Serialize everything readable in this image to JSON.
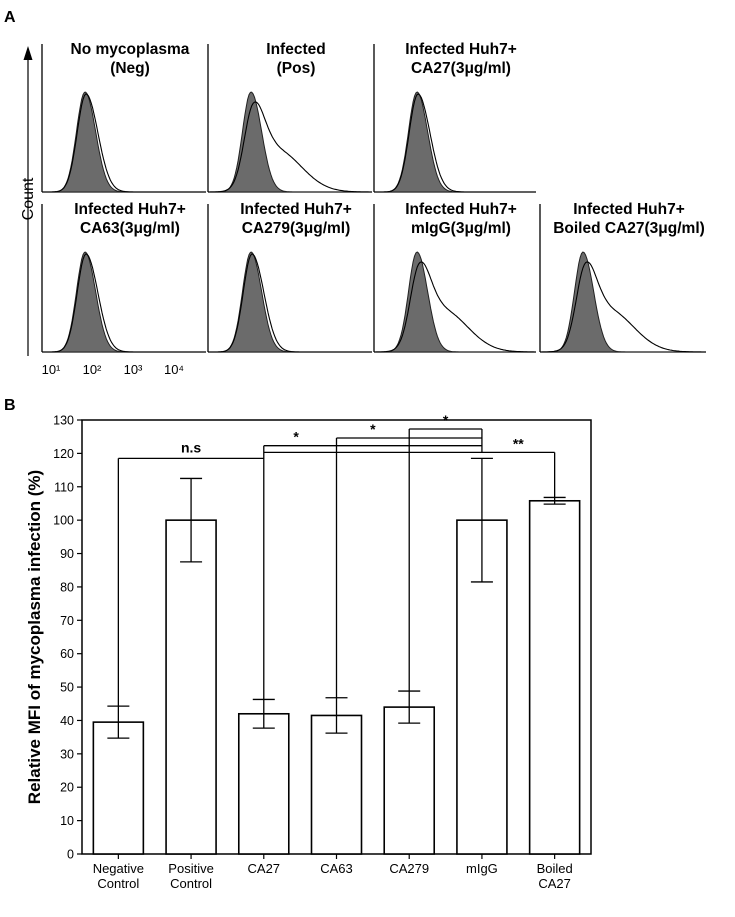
{
  "panel_a": {
    "label": "A",
    "count_label": "Count",
    "decade_labels": [
      "10¹",
      "10²",
      "10³",
      "10⁴"
    ],
    "histograms": [
      {
        "title": [
          "No mycoplasma",
          "(Neg)"
        ],
        "shift": "none"
      },
      {
        "title": [
          "Infected",
          "(Pos)"
        ],
        "shift": "strong"
      },
      {
        "title": [
          "Infected Huh7+",
          "CA27(3μg/ml)"
        ],
        "shift": "none"
      },
      {
        "title": [
          "Infected Huh7+",
          "CA63(3μg/ml)"
        ],
        "shift": "none"
      },
      {
        "title": [
          "Infected Huh7+",
          "CA279(3μg/ml)"
        ],
        "shift": "none"
      },
      {
        "title": [
          "Infected Huh7+",
          "mIgG(3μg/ml)"
        ],
        "shift": "strong"
      },
      {
        "title": [
          "Infected Huh7+",
          "Boiled CA27(3μg/ml)"
        ],
        "shift": "strong"
      }
    ]
  },
  "chart_data": {
    "type": "bar",
    "label": "B",
    "title": "",
    "ylabel": "Relative MFI of mycoplasma infection (%)",
    "xlabel": "",
    "ylim": [
      0,
      130
    ],
    "yticks": [
      0,
      10,
      20,
      30,
      40,
      50,
      60,
      70,
      80,
      90,
      100,
      110,
      120,
      130
    ],
    "categories": [
      [
        "Negative",
        "Control"
      ],
      [
        "Positive",
        "Control"
      ],
      [
        "CA27"
      ],
      [
        "CA63"
      ],
      [
        "CA279"
      ],
      [
        "mIgG"
      ],
      [
        "Boiled",
        "CA27"
      ]
    ],
    "values": [
      39.5,
      100,
      42,
      41.5,
      44,
      100,
      105.8
    ],
    "errors": [
      4.8,
      12.5,
      4.3,
      5.3,
      4.8,
      18.5,
      1.0
    ],
    "brackets": [
      {
        "from": 0,
        "to": [
          2,
          3,
          4,
          5,
          6
        ],
        "label": "n.s"
      },
      {
        "from": 2,
        "to": [
          5
        ],
        "label": "*"
      },
      {
        "from": 3,
        "to": [
          5
        ],
        "label": "*"
      },
      {
        "from": 4,
        "to": [
          5
        ],
        "label": "*"
      },
      {
        "from": 6,
        "to": [
          5
        ],
        "label": "**"
      }
    ],
    "grid": false,
    "colors": {
      "bar_fill": "#ffffff",
      "bar_stroke": "#000000",
      "histogram_fill": "#6b6b6b"
    }
  }
}
